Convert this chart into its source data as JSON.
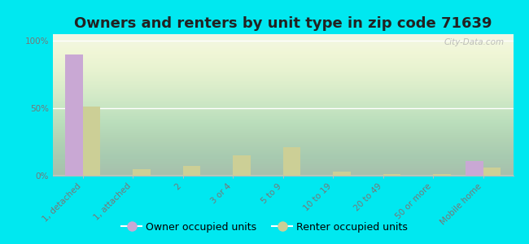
{
  "title": "Owners and renters by unit type in zip code 71639",
  "categories": [
    "1, detached",
    "1, attached",
    "2",
    "3 or 4",
    "5 to 9",
    "10 to 19",
    "20 to 49",
    "50 or more",
    "Mobile home"
  ],
  "owner_values": [
    90,
    0,
    0,
    0,
    0,
    0,
    0,
    0,
    11
  ],
  "renter_values": [
    51,
    5,
    7,
    15,
    21,
    3,
    1,
    1,
    6
  ],
  "owner_color": "#c9a8d4",
  "renter_color": "#cccf96",
  "background_color": "#00e8f0",
  "plot_bg_color": "#eef4e4",
  "ylabel_ticks": [
    "0%",
    "50%",
    "100%"
  ],
  "ytick_vals": [
    0,
    50,
    100
  ],
  "ylim": [
    0,
    105
  ],
  "bar_width": 0.35,
  "title_fontsize": 13,
  "tick_fontsize": 7.5,
  "legend_fontsize": 9,
  "watermark": "City-Data.com"
}
